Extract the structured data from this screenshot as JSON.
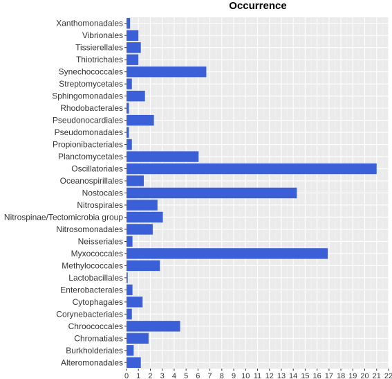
{
  "chart_data": {
    "type": "bar",
    "orientation": "horizontal",
    "title": "Occurrence",
    "xlabel": "",
    "ylabel": "",
    "xlim": [
      0,
      22
    ],
    "x_ticks": [
      "0",
      "1",
      "2",
      "3",
      "4",
      "5",
      "6",
      "7",
      "8",
      "9",
      "10",
      "11",
      "12",
      "13",
      "14",
      "15",
      "16",
      "17",
      "18",
      "19",
      "20",
      "21",
      "22"
    ],
    "grid": true,
    "bar_color": "#3a5fd6",
    "panel_color": "#ebebeb",
    "categories": [
      "Xanthomonadales",
      "Vibrionales",
      "Tissierellales",
      "Thiotrichales",
      "Synechococcales",
      "Streptomycetales",
      "Sphingomonadales",
      "Rhodobacterales",
      "Pseudonocardiales",
      "Pseudomonadales",
      "Propionibacteriales",
      "Planctomycetales",
      "Oscillatoriales",
      "Oceanospirillales",
      "Nostocales",
      "Nitrospirales",
      "Nitrospinae/Tectomicrobia group",
      "Nitrosomonadales",
      "Neisseriales",
      "Myxococcales",
      "Methylococcales",
      "Lactobacillales",
      "Enterobacterales",
      "Cytophagales",
      "Corynebacteriales",
      "Chroococcales",
      "Chromatiales",
      "Burkholderiales",
      "Alteromonadales"
    ],
    "values": [
      0.3,
      1.0,
      1.2,
      1.0,
      6.7,
      0.45,
      1.55,
      0.2,
      2.3,
      0.2,
      0.45,
      6.05,
      21.0,
      1.45,
      14.3,
      2.6,
      3.05,
      2.2,
      0.5,
      16.9,
      2.8,
      0.1,
      0.5,
      1.35,
      0.45,
      4.5,
      1.85,
      0.6,
      1.2
    ]
  }
}
